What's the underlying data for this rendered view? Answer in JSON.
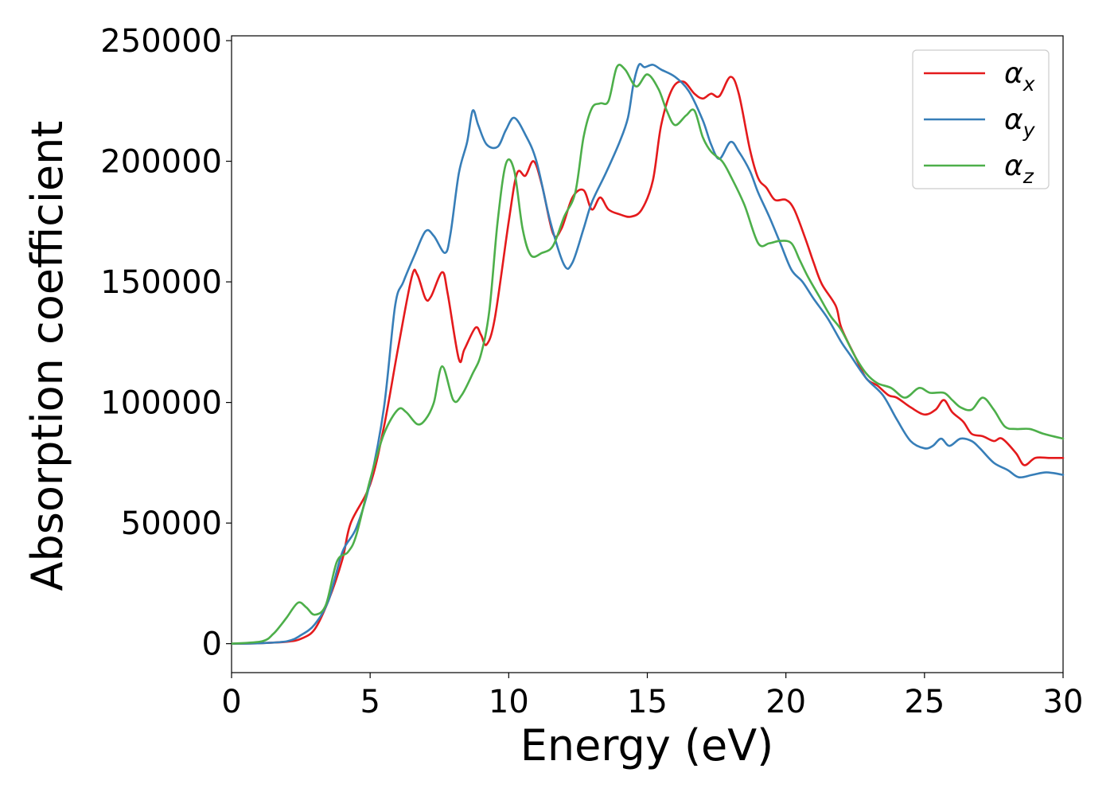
{
  "chart_data": {
    "type": "line",
    "title": "",
    "xlabel": "Energy (eV)",
    "ylabel": "Absorption coefficient",
    "xlim": [
      0,
      30
    ],
    "ylim": [
      -12000,
      252000
    ],
    "xticks": [
      0,
      5,
      10,
      15,
      20,
      25,
      30
    ],
    "yticks": [
      0,
      50000,
      100000,
      150000,
      200000,
      250000
    ],
    "xtick_labels": [
      "0",
      "5",
      "10",
      "15",
      "20",
      "25",
      "30"
    ],
    "ytick_labels": [
      "0",
      "50000",
      "100000",
      "150000",
      "200000",
      "250000"
    ],
    "grid": false,
    "legend": "top-right",
    "series": [
      {
        "name": "αx",
        "symbol": "α",
        "subscript": "x",
        "color": "#e41a1c",
        "points": [
          [
            0,
            0
          ],
          [
            1,
            200
          ],
          [
            2,
            800
          ],
          [
            2.5,
            2000
          ],
          [
            3,
            6000
          ],
          [
            3.5,
            18000
          ],
          [
            4,
            35000
          ],
          [
            4.3,
            50000
          ],
          [
            5,
            66000
          ],
          [
            5.5,
            90000
          ],
          [
            6,
            122000
          ],
          [
            6.5,
            152000
          ],
          [
            6.7,
            153000
          ],
          [
            7,
            143000
          ],
          [
            7.2,
            144000
          ],
          [
            7.6,
            154000
          ],
          [
            7.8,
            145000
          ],
          [
            8.2,
            118000
          ],
          [
            8.4,
            122000
          ],
          [
            8.8,
            131000
          ],
          [
            9,
            128000
          ],
          [
            9.2,
            124000
          ],
          [
            9.5,
            135000
          ],
          [
            10,
            175000
          ],
          [
            10.3,
            195000
          ],
          [
            10.6,
            194000
          ],
          [
            10.9,
            200000
          ],
          [
            11.2,
            190000
          ],
          [
            11.6,
            170000
          ],
          [
            11.9,
            172000
          ],
          [
            12.3,
            185000
          ],
          [
            12.7,
            188000
          ],
          [
            13,
            180000
          ],
          [
            13.3,
            185000
          ],
          [
            13.6,
            180000
          ],
          [
            14,
            178000
          ],
          [
            14.4,
            177000
          ],
          [
            14.8,
            180000
          ],
          [
            15.2,
            192000
          ],
          [
            15.5,
            215000
          ],
          [
            15.9,
            230000
          ],
          [
            16.3,
            233000
          ],
          [
            16.7,
            228000
          ],
          [
            17,
            226000
          ],
          [
            17.3,
            228000
          ],
          [
            17.6,
            227000
          ],
          [
            18,
            235000
          ],
          [
            18.3,
            228000
          ],
          [
            18.7,
            205000
          ],
          [
            19,
            193000
          ],
          [
            19.3,
            189000
          ],
          [
            19.6,
            184000
          ],
          [
            20,
            184000
          ],
          [
            20.3,
            180000
          ],
          [
            20.7,
            168000
          ],
          [
            21,
            158000
          ],
          [
            21.3,
            149000
          ],
          [
            21.8,
            140000
          ],
          [
            22,
            131000
          ],
          [
            22.5,
            119000
          ],
          [
            22.9,
            110000
          ],
          [
            23.3,
            107000
          ],
          [
            23.7,
            103000
          ],
          [
            24,
            102000
          ],
          [
            24.5,
            98000
          ],
          [
            25,
            95000
          ],
          [
            25.4,
            97000
          ],
          [
            25.7,
            101000
          ],
          [
            26,
            96000
          ],
          [
            26.4,
            92000
          ],
          [
            26.7,
            87000
          ],
          [
            27.1,
            86000
          ],
          [
            27.5,
            84000
          ],
          [
            27.8,
            85000
          ],
          [
            28.3,
            79000
          ],
          [
            28.6,
            74000
          ],
          [
            29,
            77000
          ],
          [
            29.5,
            77000
          ],
          [
            30,
            77000
          ]
        ]
      },
      {
        "name": "αy",
        "symbol": "α",
        "subscript": "y",
        "color": "#377eb8",
        "points": [
          [
            0,
            0
          ],
          [
            1,
            200
          ],
          [
            2,
            1000
          ],
          [
            2.5,
            3500
          ],
          [
            3,
            8000
          ],
          [
            3.5,
            18000
          ],
          [
            4,
            38000
          ],
          [
            4.5,
            48000
          ],
          [
            5,
            67000
          ],
          [
            5.5,
            98000
          ],
          [
            5.9,
            140000
          ],
          [
            6.2,
            150000
          ],
          [
            6.6,
            161000
          ],
          [
            7,
            171000
          ],
          [
            7.3,
            169000
          ],
          [
            7.7,
            162000
          ],
          [
            7.9,
            170000
          ],
          [
            8.2,
            195000
          ],
          [
            8.5,
            208000
          ],
          [
            8.7,
            221000
          ],
          [
            8.9,
            215000
          ],
          [
            9.2,
            207000
          ],
          [
            9.6,
            206000
          ],
          [
            9.9,
            213000
          ],
          [
            10.2,
            218000
          ],
          [
            10.6,
            211000
          ],
          [
            11,
            200000
          ],
          [
            11.5,
            175000
          ],
          [
            12,
            157000
          ],
          [
            12.3,
            158000
          ],
          [
            12.7,
            172000
          ],
          [
            13,
            183000
          ],
          [
            13.5,
            195000
          ],
          [
            14,
            208000
          ],
          [
            14.3,
            218000
          ],
          [
            14.5,
            232000
          ],
          [
            14.7,
            240000
          ],
          [
            14.9,
            239000
          ],
          [
            15.2,
            240000
          ],
          [
            15.5,
            238000
          ],
          [
            16,
            235000
          ],
          [
            16.5,
            229000
          ],
          [
            17,
            217000
          ],
          [
            17.3,
            207000
          ],
          [
            17.6,
            201000
          ],
          [
            18,
            208000
          ],
          [
            18.3,
            204000
          ],
          [
            18.7,
            196000
          ],
          [
            19,
            187000
          ],
          [
            19.4,
            177000
          ],
          [
            19.8,
            166000
          ],
          [
            20.2,
            155000
          ],
          [
            20.6,
            150000
          ],
          [
            21,
            143000
          ],
          [
            21.5,
            135000
          ],
          [
            22,
            125000
          ],
          [
            22.3,
            120000
          ],
          [
            22.9,
            110000
          ],
          [
            23.5,
            103000
          ],
          [
            24,
            93000
          ],
          [
            24.5,
            84000
          ],
          [
            25,
            81000
          ],
          [
            25.3,
            82000
          ],
          [
            25.6,
            85000
          ],
          [
            25.9,
            82000
          ],
          [
            26.3,
            85000
          ],
          [
            26.7,
            84000
          ],
          [
            27,
            81000
          ],
          [
            27.5,
            75000
          ],
          [
            28,
            72000
          ],
          [
            28.4,
            69000
          ],
          [
            28.9,
            70000
          ],
          [
            29.4,
            71000
          ],
          [
            30,
            70000
          ]
        ]
      },
      {
        "name": "αz",
        "symbol": "α",
        "subscript": "z",
        "color": "#4daf4a",
        "points": [
          [
            0,
            0
          ],
          [
            1.1,
            1000
          ],
          [
            1.5,
            4000
          ],
          [
            1.8,
            8000
          ],
          [
            2,
            11000
          ],
          [
            2.4,
            17000
          ],
          [
            2.7,
            15000
          ],
          [
            3,
            12000
          ],
          [
            3.4,
            16000
          ],
          [
            3.8,
            34000
          ],
          [
            4.2,
            38000
          ],
          [
            4.5,
            45000
          ],
          [
            5,
            68000
          ],
          [
            5.5,
            87000
          ],
          [
            6,
            97000
          ],
          [
            6.3,
            96000
          ],
          [
            6.7,
            91000
          ],
          [
            7,
            93000
          ],
          [
            7.3,
            100000
          ],
          [
            7.6,
            115000
          ],
          [
            8,
            101000
          ],
          [
            8.3,
            103000
          ],
          [
            8.7,
            112000
          ],
          [
            9,
            120000
          ],
          [
            9.3,
            138000
          ],
          [
            9.6,
            175000
          ],
          [
            9.9,
            199000
          ],
          [
            10.2,
            196000
          ],
          [
            10.5,
            172000
          ],
          [
            10.8,
            161000
          ],
          [
            11.2,
            162000
          ],
          [
            11.6,
            165000
          ],
          [
            12,
            177000
          ],
          [
            12.4,
            187000
          ],
          [
            12.7,
            210000
          ],
          [
            13,
            222000
          ],
          [
            13.3,
            224000
          ],
          [
            13.6,
            225000
          ],
          [
            13.9,
            239000
          ],
          [
            14.2,
            238000
          ],
          [
            14.6,
            231000
          ],
          [
            15,
            236000
          ],
          [
            15.4,
            230000
          ],
          [
            15.7,
            221000
          ],
          [
            16,
            215000
          ],
          [
            16.4,
            219000
          ],
          [
            16.7,
            221000
          ],
          [
            17,
            210000
          ],
          [
            17.3,
            204000
          ],
          [
            17.7,
            200000
          ],
          [
            18,
            194000
          ],
          [
            18.5,
            182000
          ],
          [
            19,
            166000
          ],
          [
            19.4,
            166000
          ],
          [
            19.8,
            167000
          ],
          [
            20.2,
            166000
          ],
          [
            20.5,
            159000
          ],
          [
            20.8,
            152000
          ],
          [
            21.2,
            144000
          ],
          [
            21.6,
            136000
          ],
          [
            22,
            130000
          ],
          [
            22.5,
            119000
          ],
          [
            22.9,
            112000
          ],
          [
            23.3,
            108000
          ],
          [
            23.8,
            106000
          ],
          [
            24.3,
            102000
          ],
          [
            24.8,
            106000
          ],
          [
            25.2,
            104000
          ],
          [
            25.7,
            104000
          ],
          [
            26,
            101000
          ],
          [
            26.3,
            98000
          ],
          [
            26.7,
            97000
          ],
          [
            27.1,
            102000
          ],
          [
            27.5,
            97000
          ],
          [
            27.9,
            90000
          ],
          [
            28.3,
            89000
          ],
          [
            28.8,
            89000
          ],
          [
            29.3,
            87000
          ],
          [
            30,
            85000
          ]
        ]
      }
    ]
  }
}
